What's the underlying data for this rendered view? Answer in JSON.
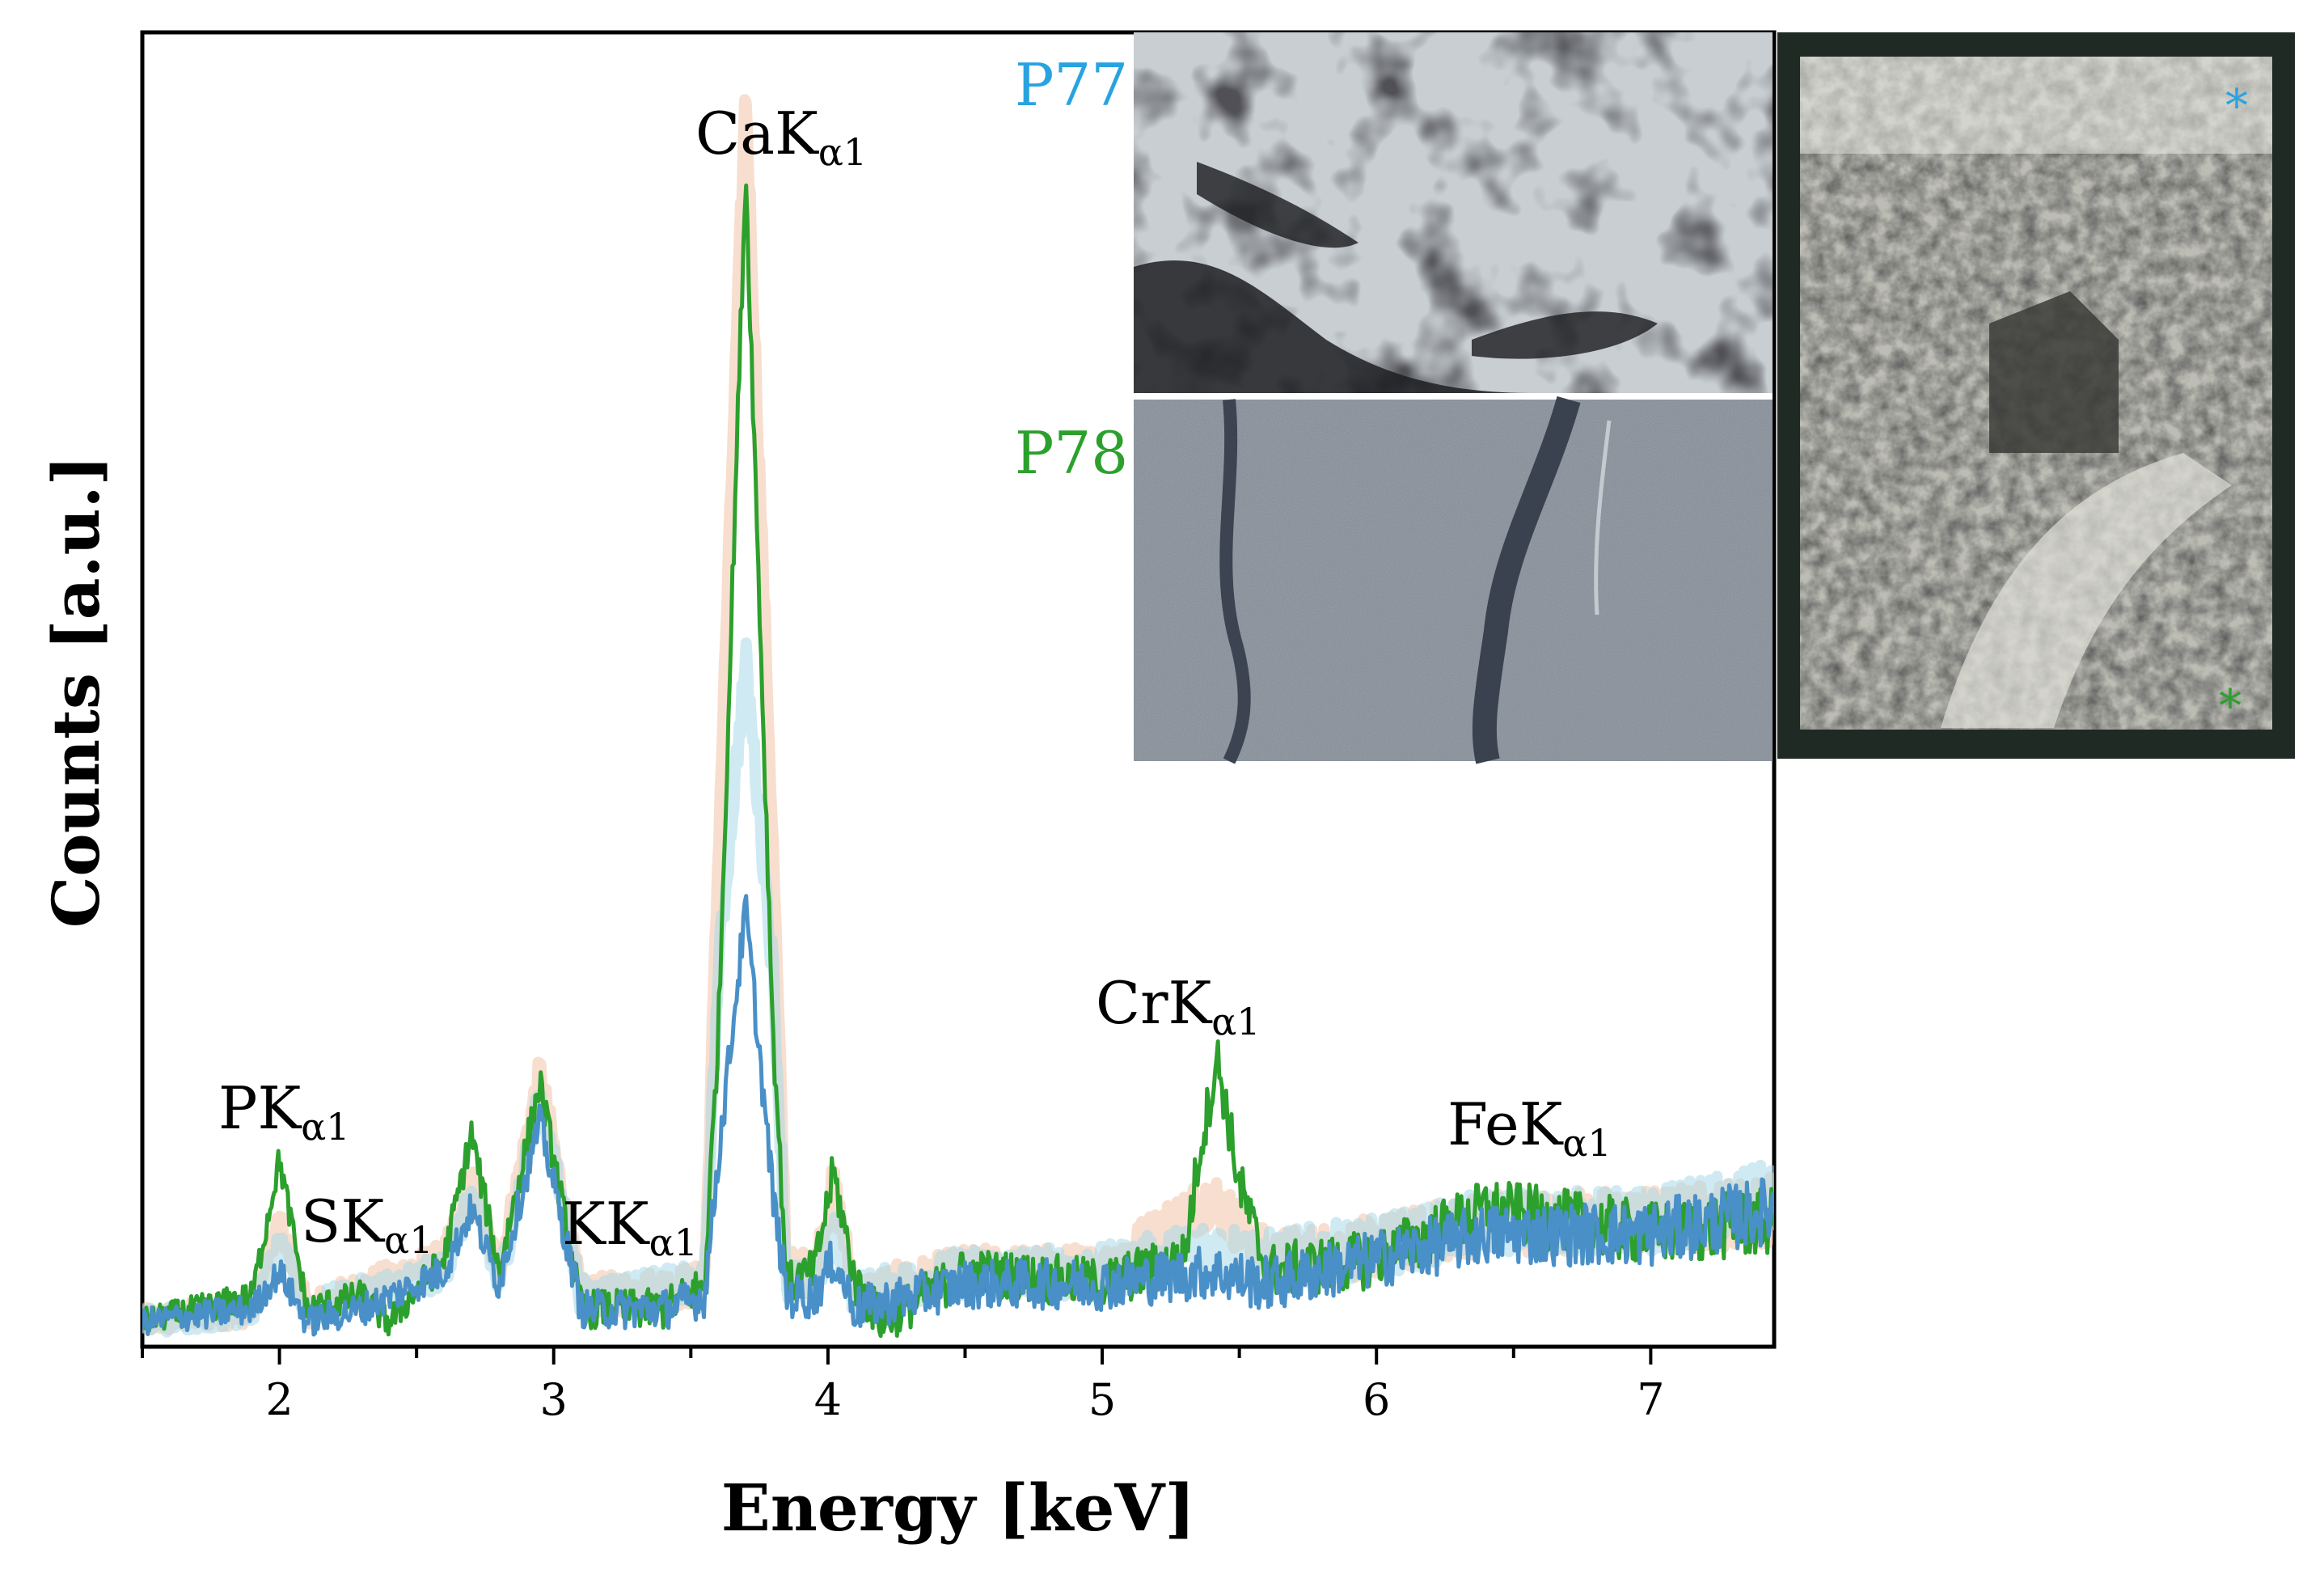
{
  "chart_data": {
    "type": "line",
    "xlabel": "Energy [keV]",
    "ylabel": "Counts [a.u.]",
    "xlim": [
      1.5,
      7.45
    ],
    "ylim": [
      0,
      1.05
    ],
    "xticks": [
      2,
      3,
      4,
      5,
      6,
      7
    ],
    "yticks_shown": false,
    "grid": false,
    "legend": "none",
    "peaks": [
      {
        "element": "P",
        "line": "α1",
        "energy": 2.01
      },
      {
        "element": "S",
        "line": "α1",
        "energy": 2.31
      },
      {
        "element": "K",
        "line": "α1",
        "energy": 3.31
      },
      {
        "element": "Ca",
        "line": "α1",
        "energy": 3.69
      },
      {
        "element": "Cr",
        "line": "α1",
        "energy": 5.41
      },
      {
        "element": "Fe",
        "line": "α1",
        "energy": 6.4
      }
    ],
    "peak_label_prefix": "K",
    "series": [
      {
        "color": "#2ca02c",
        "opacity": 1.0,
        "width": 5,
        "x": [
          1.5,
          1.9,
          2.0,
          2.1,
          2.3,
          2.4,
          2.6,
          2.7,
          2.8,
          2.95,
          3.1,
          3.4,
          3.55,
          3.6,
          3.7,
          3.8,
          3.85,
          3.95,
          4.02,
          4.1,
          4.2,
          4.5,
          5.0,
          5.3,
          5.35,
          5.42,
          5.5,
          5.6,
          6.0,
          6.4,
          7.0,
          7.45
        ],
        "y": [
          0.02,
          0.04,
          0.15,
          0.03,
          0.04,
          0.02,
          0.07,
          0.17,
          0.06,
          0.21,
          0.03,
          0.03,
          0.05,
          0.25,
          0.94,
          0.25,
          0.05,
          0.06,
          0.14,
          0.05,
          0.02,
          0.06,
          0.05,
          0.07,
          0.15,
          0.23,
          0.13,
          0.06,
          0.07,
          0.11,
          0.09,
          0.1
        ]
      },
      {
        "color": "#4a90c8",
        "opacity": 1.0,
        "width": 5,
        "x": [
          1.5,
          1.9,
          2.0,
          2.1,
          2.3,
          2.6,
          2.7,
          2.8,
          2.95,
          3.1,
          3.4,
          3.55,
          3.6,
          3.7,
          3.8,
          3.85,
          3.95,
          4.02,
          4.1,
          4.5,
          5.0,
          5.4,
          5.6,
          6.0,
          6.4,
          7.0,
          7.45
        ],
        "y": [
          0.02,
          0.03,
          0.06,
          0.02,
          0.03,
          0.06,
          0.11,
          0.05,
          0.18,
          0.03,
          0.03,
          0.04,
          0.15,
          0.35,
          0.12,
          0.04,
          0.04,
          0.07,
          0.03,
          0.05,
          0.05,
          0.06,
          0.05,
          0.07,
          0.09,
          0.09,
          0.11
        ]
      },
      {
        "color": "#f2c3a8",
        "opacity": 0.55,
        "width": 14,
        "x": [
          1.5,
          1.9,
          2.0,
          2.1,
          2.6,
          2.7,
          2.8,
          2.95,
          3.1,
          3.55,
          3.6,
          3.7,
          3.8,
          3.85,
          3.95,
          4.02,
          4.1,
          4.5,
          5.0,
          5.4,
          5.6,
          6.0,
          6.4,
          7.0,
          7.45
        ],
        "y": [
          0.02,
          0.03,
          0.1,
          0.03,
          0.07,
          0.13,
          0.06,
          0.22,
          0.04,
          0.05,
          0.4,
          1.01,
          0.4,
          0.06,
          0.06,
          0.13,
          0.04,
          0.06,
          0.06,
          0.12,
          0.07,
          0.08,
          0.1,
          0.1,
          0.11
        ]
      },
      {
        "color": "#a8d8e8",
        "opacity": 0.55,
        "width": 14,
        "x": [
          1.5,
          1.9,
          2.0,
          2.1,
          2.6,
          2.7,
          2.8,
          2.95,
          3.1,
          3.55,
          3.6,
          3.7,
          3.8,
          3.85,
          3.95,
          4.02,
          4.1,
          4.5,
          5.0,
          5.4,
          5.6,
          6.0,
          6.4,
          7.0,
          7.45
        ],
        "y": [
          0.02,
          0.03,
          0.08,
          0.03,
          0.06,
          0.12,
          0.05,
          0.2,
          0.04,
          0.05,
          0.3,
          0.55,
          0.3,
          0.05,
          0.05,
          0.09,
          0.04,
          0.06,
          0.06,
          0.08,
          0.07,
          0.08,
          0.1,
          0.1,
          0.12
        ]
      }
    ]
  },
  "insets": {
    "p77_label": "P77",
    "p78_label": "P78",
    "p77_color": "#29a3e0",
    "p78_color": "#2ca02c",
    "marker_p77": "*",
    "marker_p78": "*"
  }
}
